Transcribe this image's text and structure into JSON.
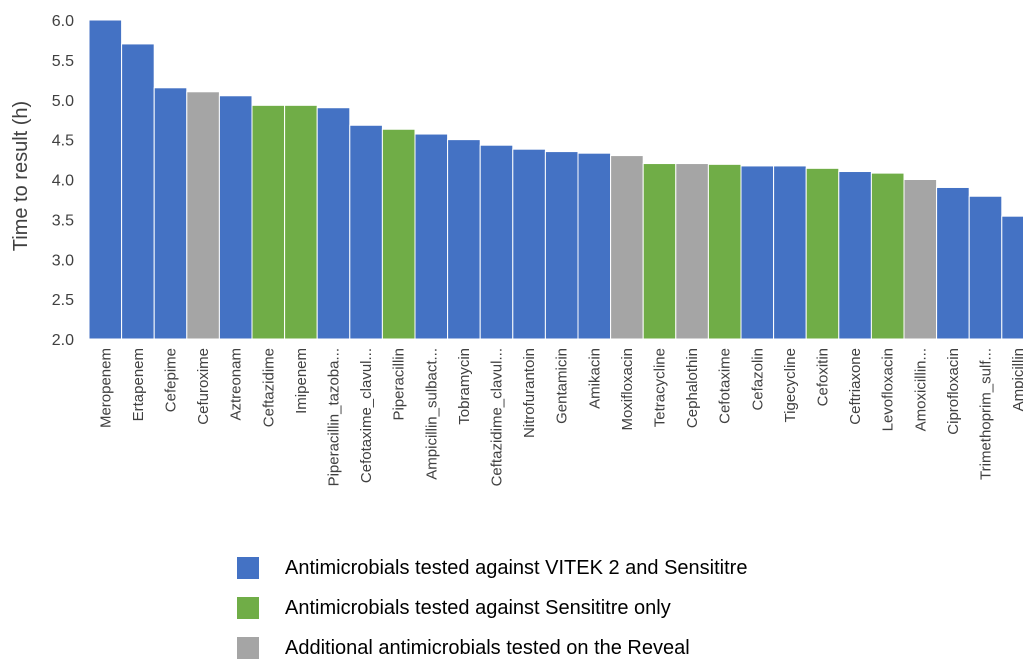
{
  "chart_data": {
    "type": "bar",
    "ylabel": "Time to result (h)",
    "ylim": [
      2.0,
      6.0
    ],
    "yticks": [
      "2.0",
      "2.5",
      "3.0",
      "3.5",
      "4.0",
      "4.5",
      "5.0",
      "5.5",
      "6.0"
    ],
    "categories": [
      "Meropenem",
      "Ertapenem",
      "Cefepime",
      "Cefuroxime",
      "Aztreonam",
      "Ceftazidime",
      "Imipenem",
      "Piperacillin_tazoba...",
      "Cefotaxime_clavul...",
      "Piperacillin",
      "Ampicillin_sulbact...",
      "Tobramycin",
      "Ceftazidime_clavul...",
      "Nitrofurantoin",
      "Gentamicin",
      "Amikacin",
      "Moxifloxacin",
      "Tetracycline",
      "Cephalothin",
      "Cefotaxime",
      "Cefazolin",
      "Tigecycline",
      "Cefoxitin",
      "Ceftriaxone",
      "Levofloxacin",
      "Amoxicillin...",
      "Ciprofloxacin",
      "Trimethoprim_sulf...",
      "Ampicillin"
    ],
    "values": [
      6.0,
      5.7,
      5.15,
      5.1,
      5.05,
      4.93,
      4.93,
      4.9,
      4.68,
      4.63,
      4.57,
      4.5,
      4.43,
      4.38,
      4.35,
      4.33,
      4.3,
      4.2,
      4.2,
      4.19,
      4.17,
      4.17,
      4.14,
      4.1,
      4.08,
      4.0,
      3.9,
      3.79,
      3.54
    ],
    "groups": [
      "vitek",
      "vitek",
      "vitek",
      "reveal",
      "vitek",
      "sensititre",
      "sensititre",
      "vitek",
      "vitek",
      "sensititre",
      "vitek",
      "vitek",
      "vitek",
      "vitek",
      "vitek",
      "vitek",
      "reveal",
      "sensititre",
      "reveal",
      "sensititre",
      "vitek",
      "vitek",
      "sensititre",
      "vitek",
      "sensititre",
      "reveal",
      "vitek",
      "vitek",
      "vitek"
    ],
    "colors": {
      "vitek": "#4472C4",
      "sensititre": "#70AD47",
      "reveal": "#A5A5A5"
    },
    "legend": [
      {
        "key": "vitek",
        "label": "Antimicrobials tested against VITEK 2 and Sensititre"
      },
      {
        "key": "sensititre",
        "label": "Antimicrobials tested against Sensititre only"
      },
      {
        "key": "reveal",
        "label": "Additional antimicrobials tested on the Reveal"
      }
    ],
    "legend_position": "bottom"
  }
}
